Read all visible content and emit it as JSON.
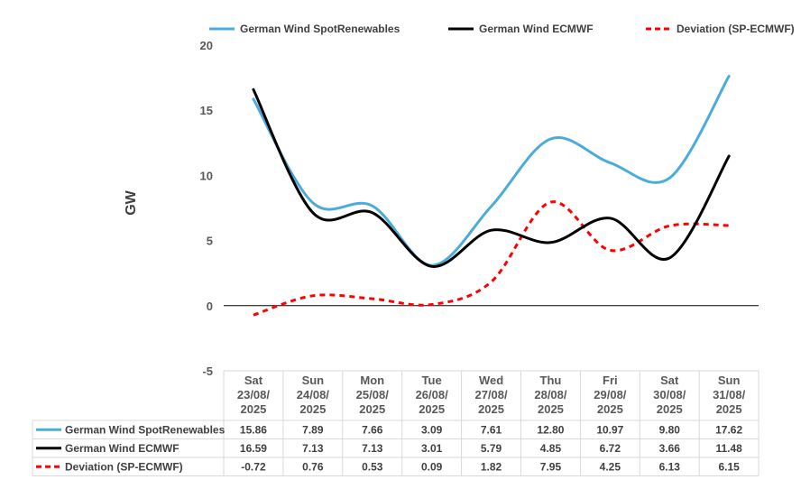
{
  "chart_data": {
    "type": "line",
    "title": "",
    "ylabel": "GW",
    "xlabel": "",
    "ylim": [
      -5,
      20
    ],
    "yticks": [
      -5,
      0,
      5,
      10,
      15,
      20
    ],
    "categories": [
      [
        "Sat",
        "23/08/",
        "2025"
      ],
      [
        "Sun",
        "24/08/",
        "2025"
      ],
      [
        "Mon",
        "25/08/",
        "2025"
      ],
      [
        "Tue",
        "26/08/",
        "2025"
      ],
      [
        "Wed",
        "27/08/",
        "2025"
      ],
      [
        "Thu",
        "28/08/",
        "2025"
      ],
      [
        "Fri",
        "29/08/",
        "2025"
      ],
      [
        "Sat",
        "30/08/",
        "2025"
      ],
      [
        "Sun",
        "31/08/",
        "2025"
      ]
    ],
    "series": [
      {
        "name": "German Wind SpotRenewables",
        "color": "#4BACDB",
        "dash": "solid",
        "values": [
          15.86,
          7.89,
          7.66,
          3.09,
          7.61,
          12.8,
          10.97,
          9.8,
          17.62
        ],
        "labels": [
          "15.86",
          "7.89",
          "7.66",
          "3.09",
          "7.61",
          "12.80",
          "10.97",
          "9.80",
          "17.62"
        ]
      },
      {
        "name": "German Wind ECMWF",
        "color": "#000000",
        "dash": "solid",
        "values": [
          16.59,
          7.13,
          7.13,
          3.01,
          5.79,
          4.85,
          6.72,
          3.66,
          11.48
        ],
        "labels": [
          "16.59",
          "7.13",
          "7.13",
          "3.01",
          "5.79",
          "4.85",
          "6.72",
          "3.66",
          "11.48"
        ]
      },
      {
        "name": "Deviation (SP-ECMWF)",
        "color": "#FF0000",
        "dash": "dashed",
        "values": [
          -0.72,
          0.76,
          0.53,
          0.09,
          1.82,
          7.95,
          4.25,
          6.13,
          6.15
        ],
        "labels": [
          "-0.72",
          "0.76",
          "0.53",
          "0.09",
          "1.82",
          "7.95",
          "4.25",
          "6.13",
          "6.15"
        ]
      }
    ],
    "legend": [
      "German Wind SpotRenewables",
      "German Wind ECMWF",
      "Deviation (SP-ECMWF)"
    ],
    "legend_position": "top",
    "data_table": true,
    "grid": false
  }
}
